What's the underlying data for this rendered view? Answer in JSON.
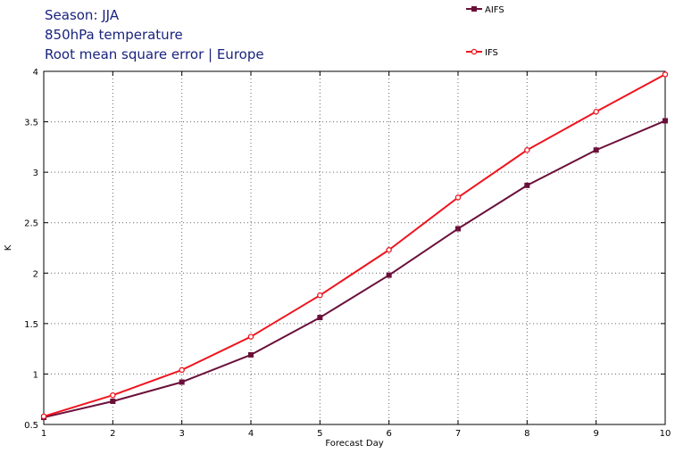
{
  "title_lines": [
    "Season: JJA",
    "850hPa temperature",
    "Root mean square error | Europe"
  ],
  "chart_data": {
    "type": "line",
    "title": "Season: JJA\n850hPa temperature\nRoot mean square error | Europe",
    "xlabel": "Forecast Day",
    "ylabel": "K",
    "x": [
      1,
      2,
      3,
      4,
      5,
      6,
      7,
      8,
      9,
      10
    ],
    "xlim": [
      1,
      10
    ],
    "ylim": [
      0.5,
      4
    ],
    "xticks": [
      1,
      2,
      3,
      4,
      5,
      6,
      7,
      8,
      9,
      10
    ],
    "yticks": [
      0.5,
      1,
      1.5,
      2,
      2.5,
      3,
      3.5,
      4
    ],
    "ytick_labels": [
      "0.5",
      "1",
      "1.5",
      "2",
      "2.5",
      "3",
      "3.5",
      "4"
    ],
    "grid": true,
    "legend_position": "top-right",
    "series": [
      {
        "name": "AIFS",
        "color": "#6b0f3a",
        "marker": "square",
        "values": [
          0.57,
          0.73,
          0.92,
          1.19,
          1.56,
          1.98,
          2.44,
          2.87,
          3.22,
          3.51
        ]
      },
      {
        "name": "IFS",
        "color": "#f0141e",
        "marker": "circle",
        "values": [
          0.58,
          0.79,
          1.04,
          1.37,
          1.78,
          2.23,
          2.75,
          3.22,
          3.6,
          3.97
        ]
      }
    ]
  }
}
